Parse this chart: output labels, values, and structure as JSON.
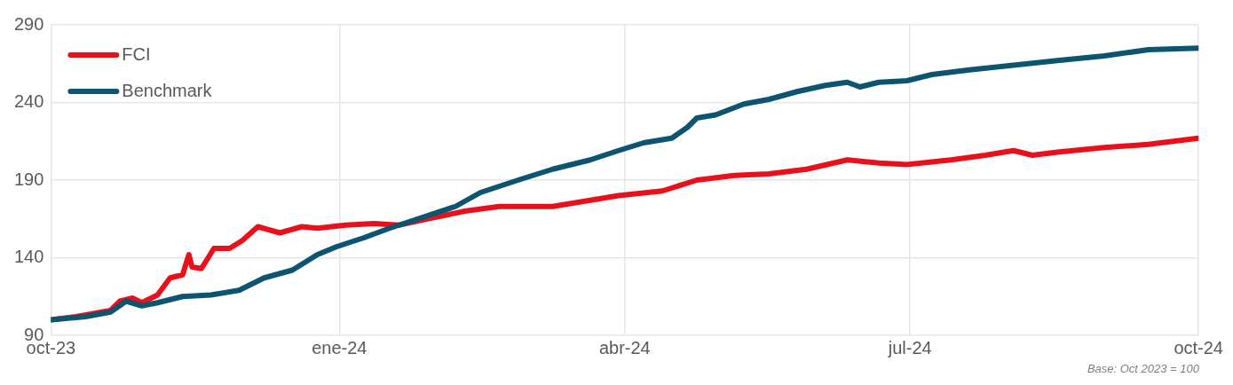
{
  "chart_data": {
    "type": "line",
    "annotations": [
      "Base: Oct 2023 = 100"
    ],
    "ylim": [
      90,
      290
    ],
    "yticks": [
      90,
      140,
      190,
      240,
      290
    ],
    "xlim": [
      "2023-10-01",
      "2024-10-01"
    ],
    "xticks": [
      {
        "value": "2023-10-01",
        "label": "oct-23"
      },
      {
        "value": "2024-01-01",
        "label": "ene-24"
      },
      {
        "value": "2024-04-01",
        "label": "abr-24"
      },
      {
        "value": "2024-07-01",
        "label": "jul-24"
      },
      {
        "value": "2024-10-01",
        "label": "oct-24"
      }
    ],
    "grid": true,
    "legend": "top left",
    "marker": "none",
    "line_style": "solid",
    "series": [
      {
        "name": "FCI",
        "color": "#e8101a",
        "x": [
          "2023-10-01",
          "2023-10-09",
          "2023-10-20",
          "2023-10-23",
          "2023-10-27",
          "2023-10-30",
          "2023-11-04",
          "2023-11-08",
          "2023-11-12",
          "2023-11-14",
          "2023-11-15",
          "2023-11-18",
          "2023-11-22",
          "2023-11-27",
          "2023-12-01",
          "2023-12-06",
          "2023-12-13",
          "2023-12-20",
          "2023-12-25",
          "2024-01-03",
          "2024-01-12",
          "2024-01-20",
          "2024-01-29",
          "2024-02-10",
          "2024-02-21",
          "2024-03-09",
          "2024-03-21",
          "2024-03-30",
          "2024-04-13",
          "2024-04-24",
          "2024-05-06",
          "2024-05-17",
          "2024-05-29",
          "2024-06-11",
          "2024-06-21",
          "2024-06-30",
          "2024-07-14",
          "2024-07-25",
          "2024-08-03",
          "2024-08-09",
          "2024-08-17",
          "2024-09-01",
          "2024-09-15",
          "2024-10-01"
        ],
        "values": [
          100,
          102,
          106,
          112,
          114,
          111,
          116,
          127,
          129,
          142,
          134,
          133,
          146,
          146,
          151,
          160,
          156,
          160,
          159,
          161,
          162,
          161,
          165,
          170,
          173,
          173,
          177,
          180,
          183,
          190,
          193,
          194,
          197,
          203,
          201,
          200,
          203,
          206,
          209,
          206,
          208,
          211,
          213,
          217
        ]
      },
      {
        "name": "Benchmark",
        "color": "#0d5470",
        "x": [
          "2023-10-01",
          "2023-10-12",
          "2023-10-20",
          "2023-10-25",
          "2023-10-30",
          "2023-11-04",
          "2023-11-12",
          "2023-11-21",
          "2023-11-30",
          "2023-12-08",
          "2023-12-17",
          "2023-12-25",
          "2023-12-31",
          "2024-01-09",
          "2024-01-17",
          "2024-01-26",
          "2024-02-07",
          "2024-02-15",
          "2024-02-27",
          "2024-03-09",
          "2024-03-21",
          "2024-03-30",
          "2024-04-07",
          "2024-04-16",
          "2024-04-21",
          "2024-04-24",
          "2024-04-30",
          "2024-05-09",
          "2024-05-17",
          "2024-05-26",
          "2024-06-04",
          "2024-06-11",
          "2024-06-15",
          "2024-06-21",
          "2024-06-30",
          "2024-07-08",
          "2024-07-20",
          "2024-08-03",
          "2024-08-17",
          "2024-09-01",
          "2024-09-15",
          "2024-10-01"
        ],
        "values": [
          100,
          102,
          105,
          112,
          109,
          111,
          115,
          116,
          119,
          127,
          132,
          142,
          147,
          153,
          159,
          165,
          173,
          182,
          190,
          197,
          203,
          209,
          214,
          217,
          224,
          230,
          232,
          239,
          242,
          247,
          251,
          253,
          250,
          253,
          254,
          258,
          261,
          264,
          267,
          270,
          274,
          275
        ]
      }
    ]
  }
}
